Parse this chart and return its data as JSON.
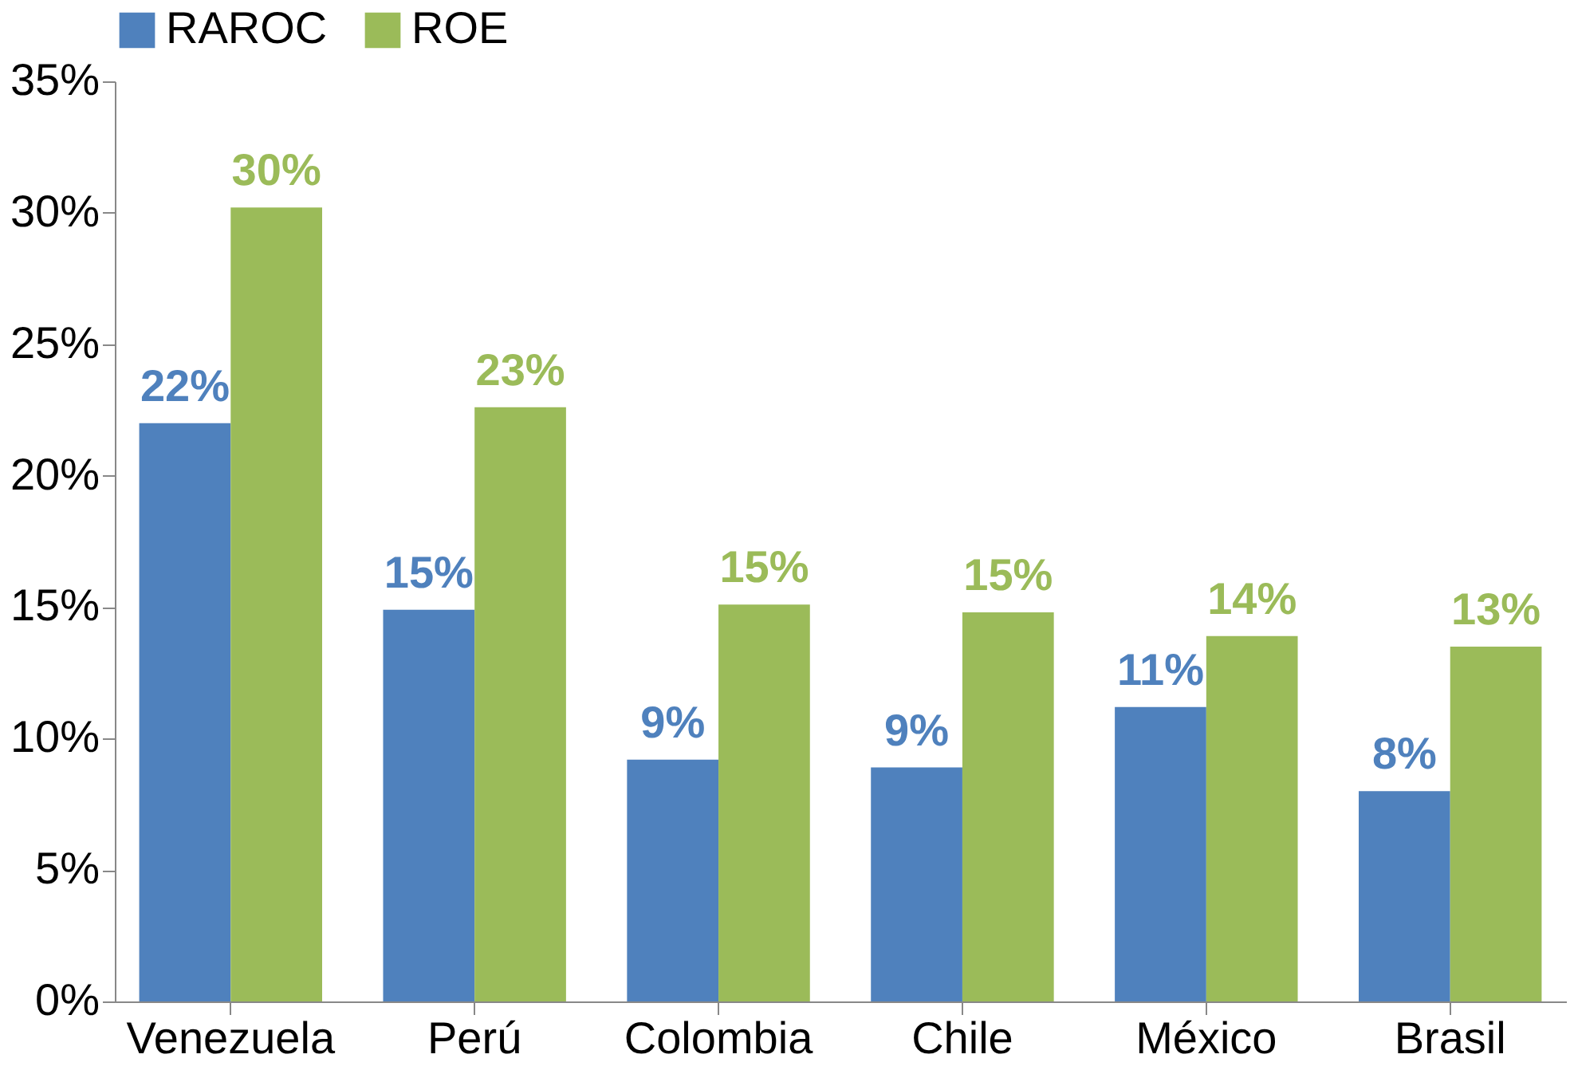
{
  "chart_data": {
    "type": "bar",
    "categories": [
      "Venezuela",
      "Perú",
      "Colombia",
      "Chile",
      "México",
      "Brasil"
    ],
    "series": [
      {
        "name": "RAROC",
        "color": "#4f81bd",
        "values": [
          22.0,
          14.9,
          9.2,
          8.9,
          11.2,
          8.0
        ],
        "value_labels": [
          "22%",
          "15%",
          "9%",
          "9%",
          "11%",
          "8%"
        ]
      },
      {
        "name": "ROE",
        "color": "#9bbb59",
        "values": [
          30.2,
          22.6,
          15.1,
          14.8,
          13.9,
          13.5
        ],
        "value_labels": [
          "30%",
          "23%",
          "15%",
          "15%",
          "14%",
          "13%"
        ]
      }
    ],
    "ylim": [
      0,
      35
    ],
    "yticks": [
      {
        "value": 0,
        "label": "0%"
      },
      {
        "value": 5,
        "label": "5%"
      },
      {
        "value": 10,
        "label": "10%"
      },
      {
        "value": 15,
        "label": "15%"
      },
      {
        "value": 20,
        "label": "20%"
      },
      {
        "value": 25,
        "label": "25%"
      },
      {
        "value": 30,
        "label": "30%"
      },
      {
        "value": 35,
        "label": "35%"
      }
    ],
    "grid": false,
    "legend": "top"
  }
}
